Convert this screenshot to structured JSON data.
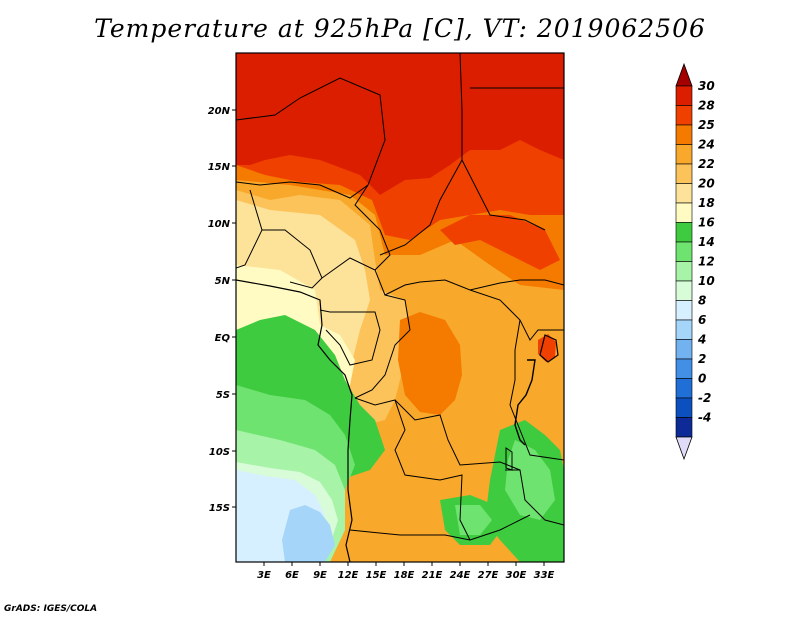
{
  "title": "Temperature at 925hPa [C], VT: 2019062506",
  "credit": "GrADS: IGES/COLA",
  "lat_labels": [
    "20N",
    "15N",
    "10N",
    "5N",
    "EQ",
    "5S",
    "10S",
    "15S"
  ],
  "lon_labels": [
    "3E",
    "6E",
    "9E",
    "12E",
    "15E",
    "18E",
    "21E",
    "24E",
    "27E",
    "30E",
    "33E"
  ],
  "colorbar": {
    "labels": [
      "30",
      "28",
      "25",
      "24",
      "22",
      "20",
      "18",
      "16",
      "14",
      "12",
      "10",
      "8",
      "6",
      "4",
      "2",
      "0",
      "-2",
      "-4"
    ],
    "colors": [
      "#a50000",
      "#dc1e00",
      "#f04000",
      "#f57a00",
      "#f8a82a",
      "#fcc35a",
      "#fde39a",
      "#fffbc2",
      "#3fcb3f",
      "#6fe36f",
      "#a7f3a7",
      "#d8fbd8",
      "#d7f0ff",
      "#a5d6f9",
      "#72b2f0",
      "#4190e6",
      "#1f6fd7",
      "#0c50c0",
      "#0d2a96",
      "#0a0a5a"
    ],
    "top_triangle_color": "#a50000",
    "bottom_triangle_color": "#e0dcf8"
  },
  "map_colors": {
    "hot_red": "#dc1e00",
    "red_orange": "#f04000",
    "orange": "#f57a00",
    "light_orange": "#f8a82a",
    "yellow": "#fcc35a",
    "pale_yellow": "#fde39a",
    "cream": "#fffbc2",
    "green": "#3fcb3f",
    "light_green": "#6fe36f",
    "pale_green": "#a7f3a7",
    "mint": "#d8fbd8",
    "ice": "#d7f0ff",
    "light_blue": "#a5d6f9"
  }
}
